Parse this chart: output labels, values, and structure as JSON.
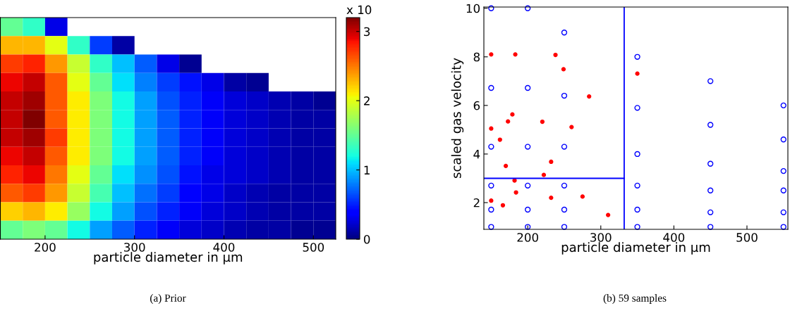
{
  "chart_data": [
    {
      "type": "heatmap",
      "xlabel": "particle diameter in µm",
      "clabel": "x 10",
      "annotations": [
        "(a) Prior"
      ],
      "x": [
        162.5,
        187.5,
        212.5,
        237.5,
        262.5,
        287.5,
        312.5,
        337.5,
        362.5,
        387.5,
        412.5,
        437.5,
        462.5,
        487.5,
        512.5
      ],
      "xlim": [
        150,
        525
      ],
      "xticks": [
        200,
        300,
        400,
        500
      ],
      "tick_labels": "x",
      "y_categories": [
        null,
        null,
        null,
        null,
        null,
        null,
        null,
        null,
        null,
        null,
        null,
        null
      ],
      "cells": [
        [
          1.5,
          1.3,
          0.3,
          null,
          null,
          null,
          null,
          null,
          null,
          null,
          null,
          null,
          null,
          null,
          null
        ],
        [
          2.3,
          2.3,
          2.0,
          1.3,
          0.6,
          0.1,
          null,
          null,
          null,
          null,
          null,
          null,
          null,
          null,
          null
        ],
        [
          2.7,
          2.8,
          2.4,
          1.9,
          1.3,
          1.0,
          0.7,
          0.3,
          0.05,
          null,
          null,
          null,
          null,
          null,
          null
        ],
        [
          2.9,
          3.0,
          2.6,
          2.0,
          1.5,
          1.1,
          0.8,
          0.6,
          0.45,
          0.3,
          0.1,
          0.05,
          null,
          null,
          null
        ],
        [
          3.0,
          3.1,
          2.6,
          2.1,
          1.6,
          1.2,
          0.9,
          0.65,
          0.5,
          0.35,
          0.25,
          0.2,
          0.15,
          0.1,
          0.05
        ],
        [
          3.0,
          3.2,
          2.6,
          2.1,
          1.6,
          1.2,
          0.9,
          0.7,
          0.5,
          0.35,
          0.25,
          0.2,
          0.15,
          0.1,
          0.1
        ],
        [
          3.0,
          3.1,
          2.7,
          2.1,
          1.6,
          1.2,
          0.9,
          0.7,
          0.5,
          0.35,
          0.25,
          0.2,
          0.15,
          0.1,
          0.1
        ],
        [
          2.9,
          3.0,
          2.6,
          2.1,
          1.6,
          1.2,
          0.9,
          0.7,
          0.5,
          0.35,
          0.25,
          0.2,
          0.15,
          0.1,
          0.1
        ],
        [
          2.8,
          2.9,
          2.5,
          2.0,
          1.5,
          1.1,
          0.85,
          0.65,
          0.45,
          0.3,
          0.25,
          0.2,
          0.15,
          0.1,
          0.1
        ],
        [
          2.6,
          2.7,
          2.4,
          1.9,
          1.4,
          1.0,
          0.75,
          0.6,
          0.4,
          0.3,
          0.2,
          0.15,
          0.1,
          0.1,
          0.1
        ],
        [
          2.2,
          2.3,
          2.1,
          1.7,
          1.2,
          0.9,
          0.65,
          0.5,
          0.35,
          0.25,
          0.2,
          0.15,
          0.1,
          0.1,
          0.1
        ],
        [
          1.5,
          1.6,
          1.5,
          1.2,
          0.9,
          0.7,
          0.5,
          0.35,
          0.25,
          0.2,
          0.15,
          0.1,
          0.1,
          0.05,
          0.05
        ]
      ],
      "clim": [
        0,
        3.2
      ],
      "cticks": [
        0,
        1,
        2,
        3
      ]
    },
    {
      "type": "scatter",
      "xlabel": "particle diameter in µm",
      "ylabel": "scaled gas velocity",
      "annotations": [
        "(b) 59 samples"
      ],
      "xlim": [
        140,
        556
      ],
      "xticks": [
        200,
        300,
        400,
        500
      ],
      "ylim": [
        0.9,
        10.05
      ],
      "yticks": [
        2,
        4,
        6,
        8,
        10
      ],
      "grid": false,
      "marker": "circle",
      "series": [
        {
          "color": "#0000ff",
          "x": [
            150,
            150,
            150,
            150,
            150,
            150,
            200,
            200,
            200,
            200,
            200,
            200,
            250,
            250,
            250,
            250,
            250,
            250,
            350,
            350,
            350,
            350,
            350,
            350,
            450,
            450,
            450,
            450,
            450,
            450,
            550,
            550,
            550,
            550,
            550,
            550
          ],
          "values": [
            10.0,
            6.72,
            4.3,
            2.7,
            1.71,
            1.0,
            10.0,
            6.72,
            4.3,
            2.7,
            1.71,
            1.0,
            9.0,
            6.4,
            4.3,
            2.7,
            1.71,
            1.0,
            8.0,
            5.9,
            4.0,
            2.7,
            1.71,
            1.0,
            7.0,
            5.2,
            3.6,
            2.5,
            1.6,
            1.0,
            6.0,
            4.6,
            3.3,
            2.5,
            1.6,
            1.0
          ]
        },
        {
          "color": "#ff0000",
          "x": [
            150,
            183,
            238,
            249,
            350,
            284,
            179,
            173,
            220,
            150,
            260,
            162,
            232,
            170,
            222,
            182,
            184,
            150,
            232,
            275,
            166,
            310
          ],
          "values": [
            8.1,
            8.1,
            8.08,
            7.49,
            7.31,
            6.37,
            5.63,
            5.34,
            5.33,
            5.05,
            5.11,
            4.59,
            3.68,
            3.51,
            3.14,
            2.91,
            2.42,
            2.08,
            2.2,
            2.25,
            1.89,
            1.49
          ]
        },
        {
          "type": "line",
          "color": "#0000ff",
          "x": [
            140,
            332
          ],
          "values": [
            3,
            3
          ],
          "marker": "none"
        }
      ],
      "ref_lines": [
        {
          "axis": "x",
          "value": 332,
          "color": "#0000ff"
        }
      ]
    }
  ]
}
